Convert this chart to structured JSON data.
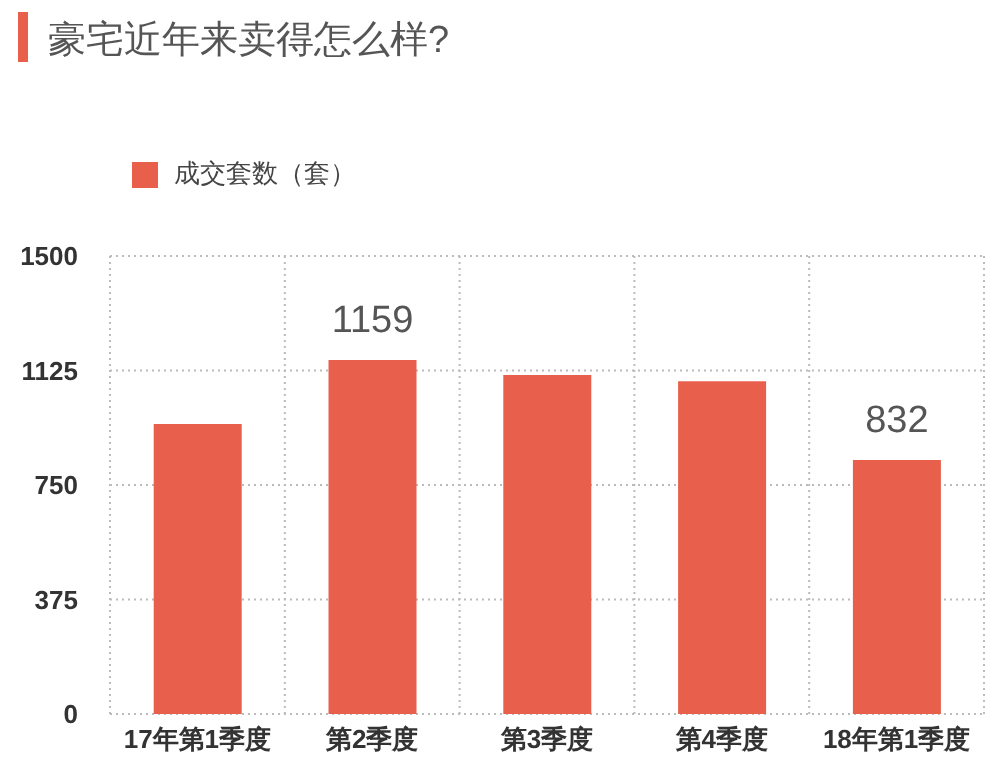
{
  "chart_data": {
    "type": "bar",
    "title": "豪宅近年来卖得怎么样?",
    "categories": [
      "17年第1季度",
      "第2季度",
      "第3季度",
      "第4季度",
      "18年第1季度"
    ],
    "series": [
      {
        "name": "成交套数（套）",
        "color": "#e8604c",
        "values": [
          950,
          1159,
          1110,
          1090,
          832
        ],
        "value_labels": [
          null,
          "1159",
          null,
          null,
          "832"
        ]
      }
    ],
    "ylim": [
      0,
      1500
    ],
    "yticks": [
      0,
      375,
      750,
      1125,
      1500
    ],
    "grid": true,
    "legend": "top left"
  }
}
